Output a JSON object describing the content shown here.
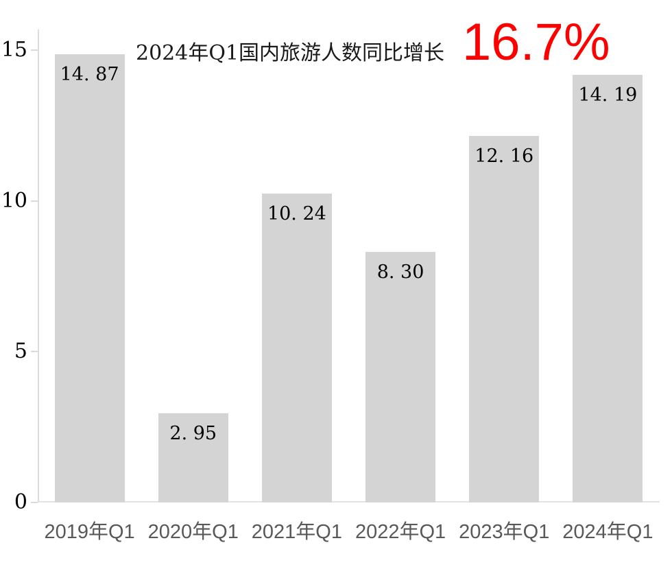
{
  "title": {
    "prefix": "2024年Q1国内旅游人数同比增长",
    "highlight": "16.7%"
  },
  "colors": {
    "highlight_red": "#ff0000",
    "bar_fill": "#d4d4d4",
    "axis_line": "#dcdcdc",
    "tick_mark": "#d9d9d9",
    "y_tick_label": "#000000",
    "x_tick_label": "#595959",
    "background": "#ffffff"
  },
  "chart_data": {
    "type": "bar",
    "title": "2024年Q1国内旅游人数同比增长 16.7%",
    "categories": [
      "2019年Q1",
      "2020年Q1",
      "2021年Q1",
      "2022年Q1",
      "2023年Q1",
      "2024年Q1"
    ],
    "values": [
      14.87,
      2.95,
      10.24,
      8.3,
      12.16,
      14.19
    ],
    "value_labels": [
      "14. 87",
      "2. 95",
      "10. 24",
      "8. 30",
      "12. 16",
      "14. 19"
    ],
    "xlabel": "",
    "ylabel": "",
    "ylim": [
      0,
      15.68
    ],
    "yticks": [
      0,
      5,
      10,
      15
    ],
    "grid": false,
    "legend": false,
    "bar_color": "#d4d4d4"
  }
}
